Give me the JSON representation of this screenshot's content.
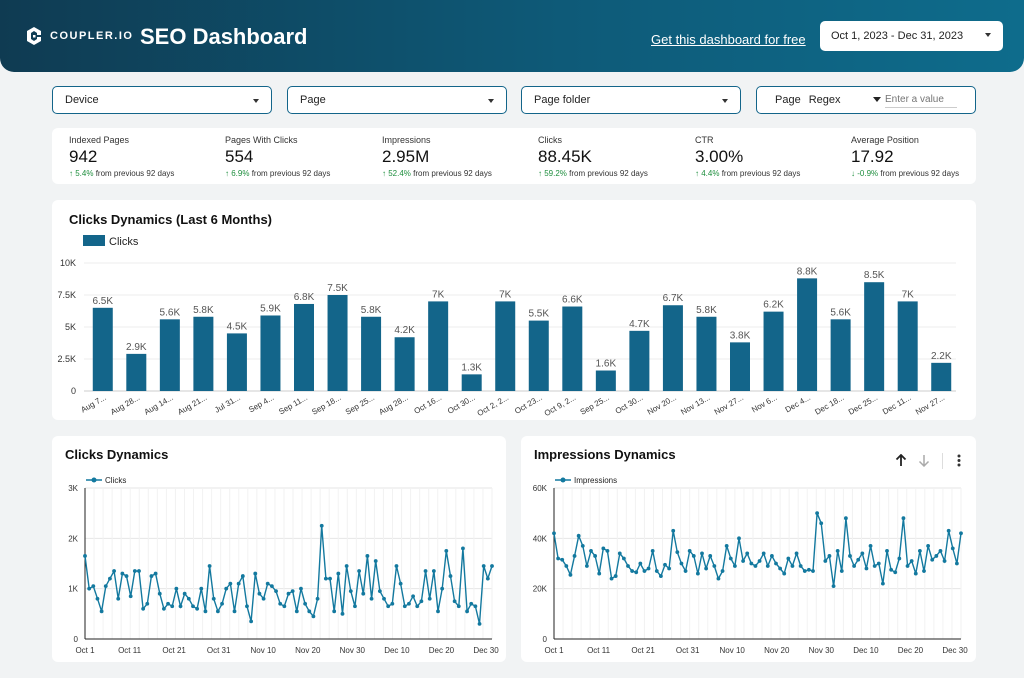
{
  "header": {
    "logo_text": "COUPLER.IO",
    "title": "SEO Dashboard",
    "free_link": "Get this dashboard for free",
    "date_range": "Oct 1, 2023 - Dec 31, 2023"
  },
  "filters": {
    "device": "Device",
    "page": "Page",
    "page_folder": "Page folder",
    "page_label": "Page",
    "regex": "Regex",
    "value_placeholder": "Enter a value"
  },
  "kpis": [
    {
      "label": "Indexed Pages",
      "value": "942",
      "change": "5.4%",
      "suffix": "from previous 92 days",
      "direction": "up"
    },
    {
      "label": "Pages With Clicks",
      "value": "554",
      "change": "6.9%",
      "suffix": "from previous 92 days",
      "direction": "up"
    },
    {
      "label": "Impressions",
      "value": "2.95M",
      "change": "52.4%",
      "suffix": "from previous 92 days",
      "direction": "up"
    },
    {
      "label": "Clicks",
      "value": "88.45K",
      "change": "59.2%",
      "suffix": "from previous 92 days",
      "direction": "up"
    },
    {
      "label": "CTR",
      "value": "3.00%",
      "change": "4.4%",
      "suffix": "from previous 92 days",
      "direction": "up"
    },
    {
      "label": "Average Position",
      "value": "17.92",
      "change": "-0.9%",
      "suffix": "from previous 92 days",
      "direction": "down"
    }
  ],
  "colors": {
    "accent": "#13658a",
    "header_dark": "#0f3b52",
    "positive": "#1e8e3e",
    "line": "#13799f"
  },
  "icons": {
    "sort_up": "arrow-up-icon",
    "sort_down": "arrow-down-icon",
    "more": "more-vert-icon"
  },
  "chart_data": [
    {
      "type": "bar",
      "title": "Clicks Dynamics (Last 6 Months)",
      "legend": "Clicks",
      "categories": [
        "Aug 7...",
        "Aug 28...",
        "Aug 14...",
        "Aug 21...",
        "Jul 31...",
        "Sep 4...",
        "Sep 11...",
        "Sep 18...",
        "Sep 25...",
        "Aug 28...",
        "Oct 16...",
        "Oct 30...",
        "Oct 2, 2...",
        "Oct 23...",
        "Oct 9, 2...",
        "Sep 25...",
        "Oct 30...",
        "Nov 20...",
        "Nov 13...",
        "Nov 27...",
        "Nov 6...",
        "Dec 4...",
        "Dec 18...",
        "Dec 25...",
        "Dec 11...",
        "Nov 27..."
      ],
      "values": [
        6500,
        2900,
        5600,
        5800,
        4500,
        5900,
        6800,
        7500,
        5800,
        4200,
        7000,
        1300,
        7000,
        5500,
        6600,
        1600,
        4700,
        6700,
        5800,
        3800,
        6200,
        8800,
        5600,
        8500,
        7000,
        2200
      ],
      "labels": [
        "6.5K",
        "2.9K",
        "5.6K",
        "5.8K",
        "4.5K",
        "5.9K",
        "6.8K",
        "7.5K",
        "5.8K",
        "4.2K",
        "7K",
        "1.3K",
        "7K",
        "5.5K",
        "6.6K",
        "1.6K",
        "4.7K",
        "6.7K",
        "5.8K",
        "3.8K",
        "6.2K",
        "8.8K",
        "5.6K",
        "8.5K",
        "7K",
        "2.2K"
      ],
      "yticks": [
        "0",
        "2.5K",
        "5K",
        "7.5K",
        "10K"
      ],
      "ylim": [
        0,
        10000
      ]
    },
    {
      "type": "line",
      "title": "Clicks Dynamics",
      "series_name": "Clicks",
      "xticks": [
        "Oct 1",
        "Oct 11",
        "Oct 21",
        "Oct 31",
        "Nov 10",
        "Nov 20",
        "Nov 30",
        "Dec 10",
        "Dec 20",
        "Dec 30"
      ],
      "yticks": [
        "0",
        "1K",
        "2K",
        "3K"
      ],
      "ylim": [
        0,
        3000
      ],
      "values": [
        1650,
        1000,
        1050,
        800,
        550,
        1050,
        1200,
        1350,
        800,
        1300,
        1250,
        850,
        1350,
        1350,
        600,
        700,
        1250,
        1300,
        900,
        600,
        700,
        650,
        1000,
        650,
        900,
        800,
        650,
        600,
        1000,
        550,
        1450,
        800,
        550,
        700,
        1000,
        1100,
        550,
        1100,
        1250,
        650,
        350,
        1300,
        900,
        800,
        1100,
        1050,
        950,
        700,
        650,
        900,
        950,
        550,
        1000,
        700,
        550,
        450,
        800,
        2250,
        1200,
        1200,
        550,
        1300,
        500,
        1450,
        950,
        650,
        1350,
        900,
        1650,
        800,
        1550,
        950,
        800,
        650,
        700,
        1450,
        1100,
        650,
        700,
        850,
        650,
        750,
        1350,
        800,
        1350,
        550,
        1000,
        1750,
        1250,
        750,
        650,
        1800,
        550,
        700,
        650,
        300,
        1450,
        1200,
        1450
      ]
    },
    {
      "type": "line",
      "title": "Impressions Dynamics",
      "series_name": "Impressions",
      "xticks": [
        "Oct 1",
        "Oct 11",
        "Oct 21",
        "Oct 31",
        "Nov 10",
        "Nov 20",
        "Nov 30",
        "Dec 10",
        "Dec 20",
        "Dec 30"
      ],
      "yticks": [
        "0",
        "20K",
        "40K",
        "60K"
      ],
      "ylim": [
        0,
        60000
      ],
      "values": [
        42000,
        32000,
        31500,
        29000,
        25500,
        33000,
        41000,
        37000,
        29000,
        35000,
        33000,
        26000,
        36000,
        35000,
        24000,
        25000,
        34000,
        32000,
        29000,
        27000,
        26500,
        30000,
        27000,
        28000,
        35000,
        27000,
        25000,
        29500,
        28000,
        43000,
        34500,
        30000,
        27000,
        35000,
        33000,
        26000,
        34000,
        28000,
        33000,
        29000,
        24000,
        27000,
        37000,
        32000,
        29000,
        40000,
        31000,
        34000,
        30000,
        29000,
        31000,
        34000,
        29000,
        33000,
        30000,
        28000,
        26000,
        32000,
        29000,
        34000,
        29000,
        27000,
        27500,
        27000,
        50000,
        46000,
        31000,
        33000,
        21000,
        35000,
        27000,
        48000,
        33000,
        29000,
        31500,
        34000,
        28000,
        37000,
        29000,
        30000,
        22000,
        35000,
        27500,
        26500,
        32000,
        48000,
        29000,
        31000,
        26000,
        35000,
        27000,
        37000,
        31500,
        33000,
        35000,
        31000,
        43000,
        36000,
        30000,
        42000
      ]
    }
  ]
}
